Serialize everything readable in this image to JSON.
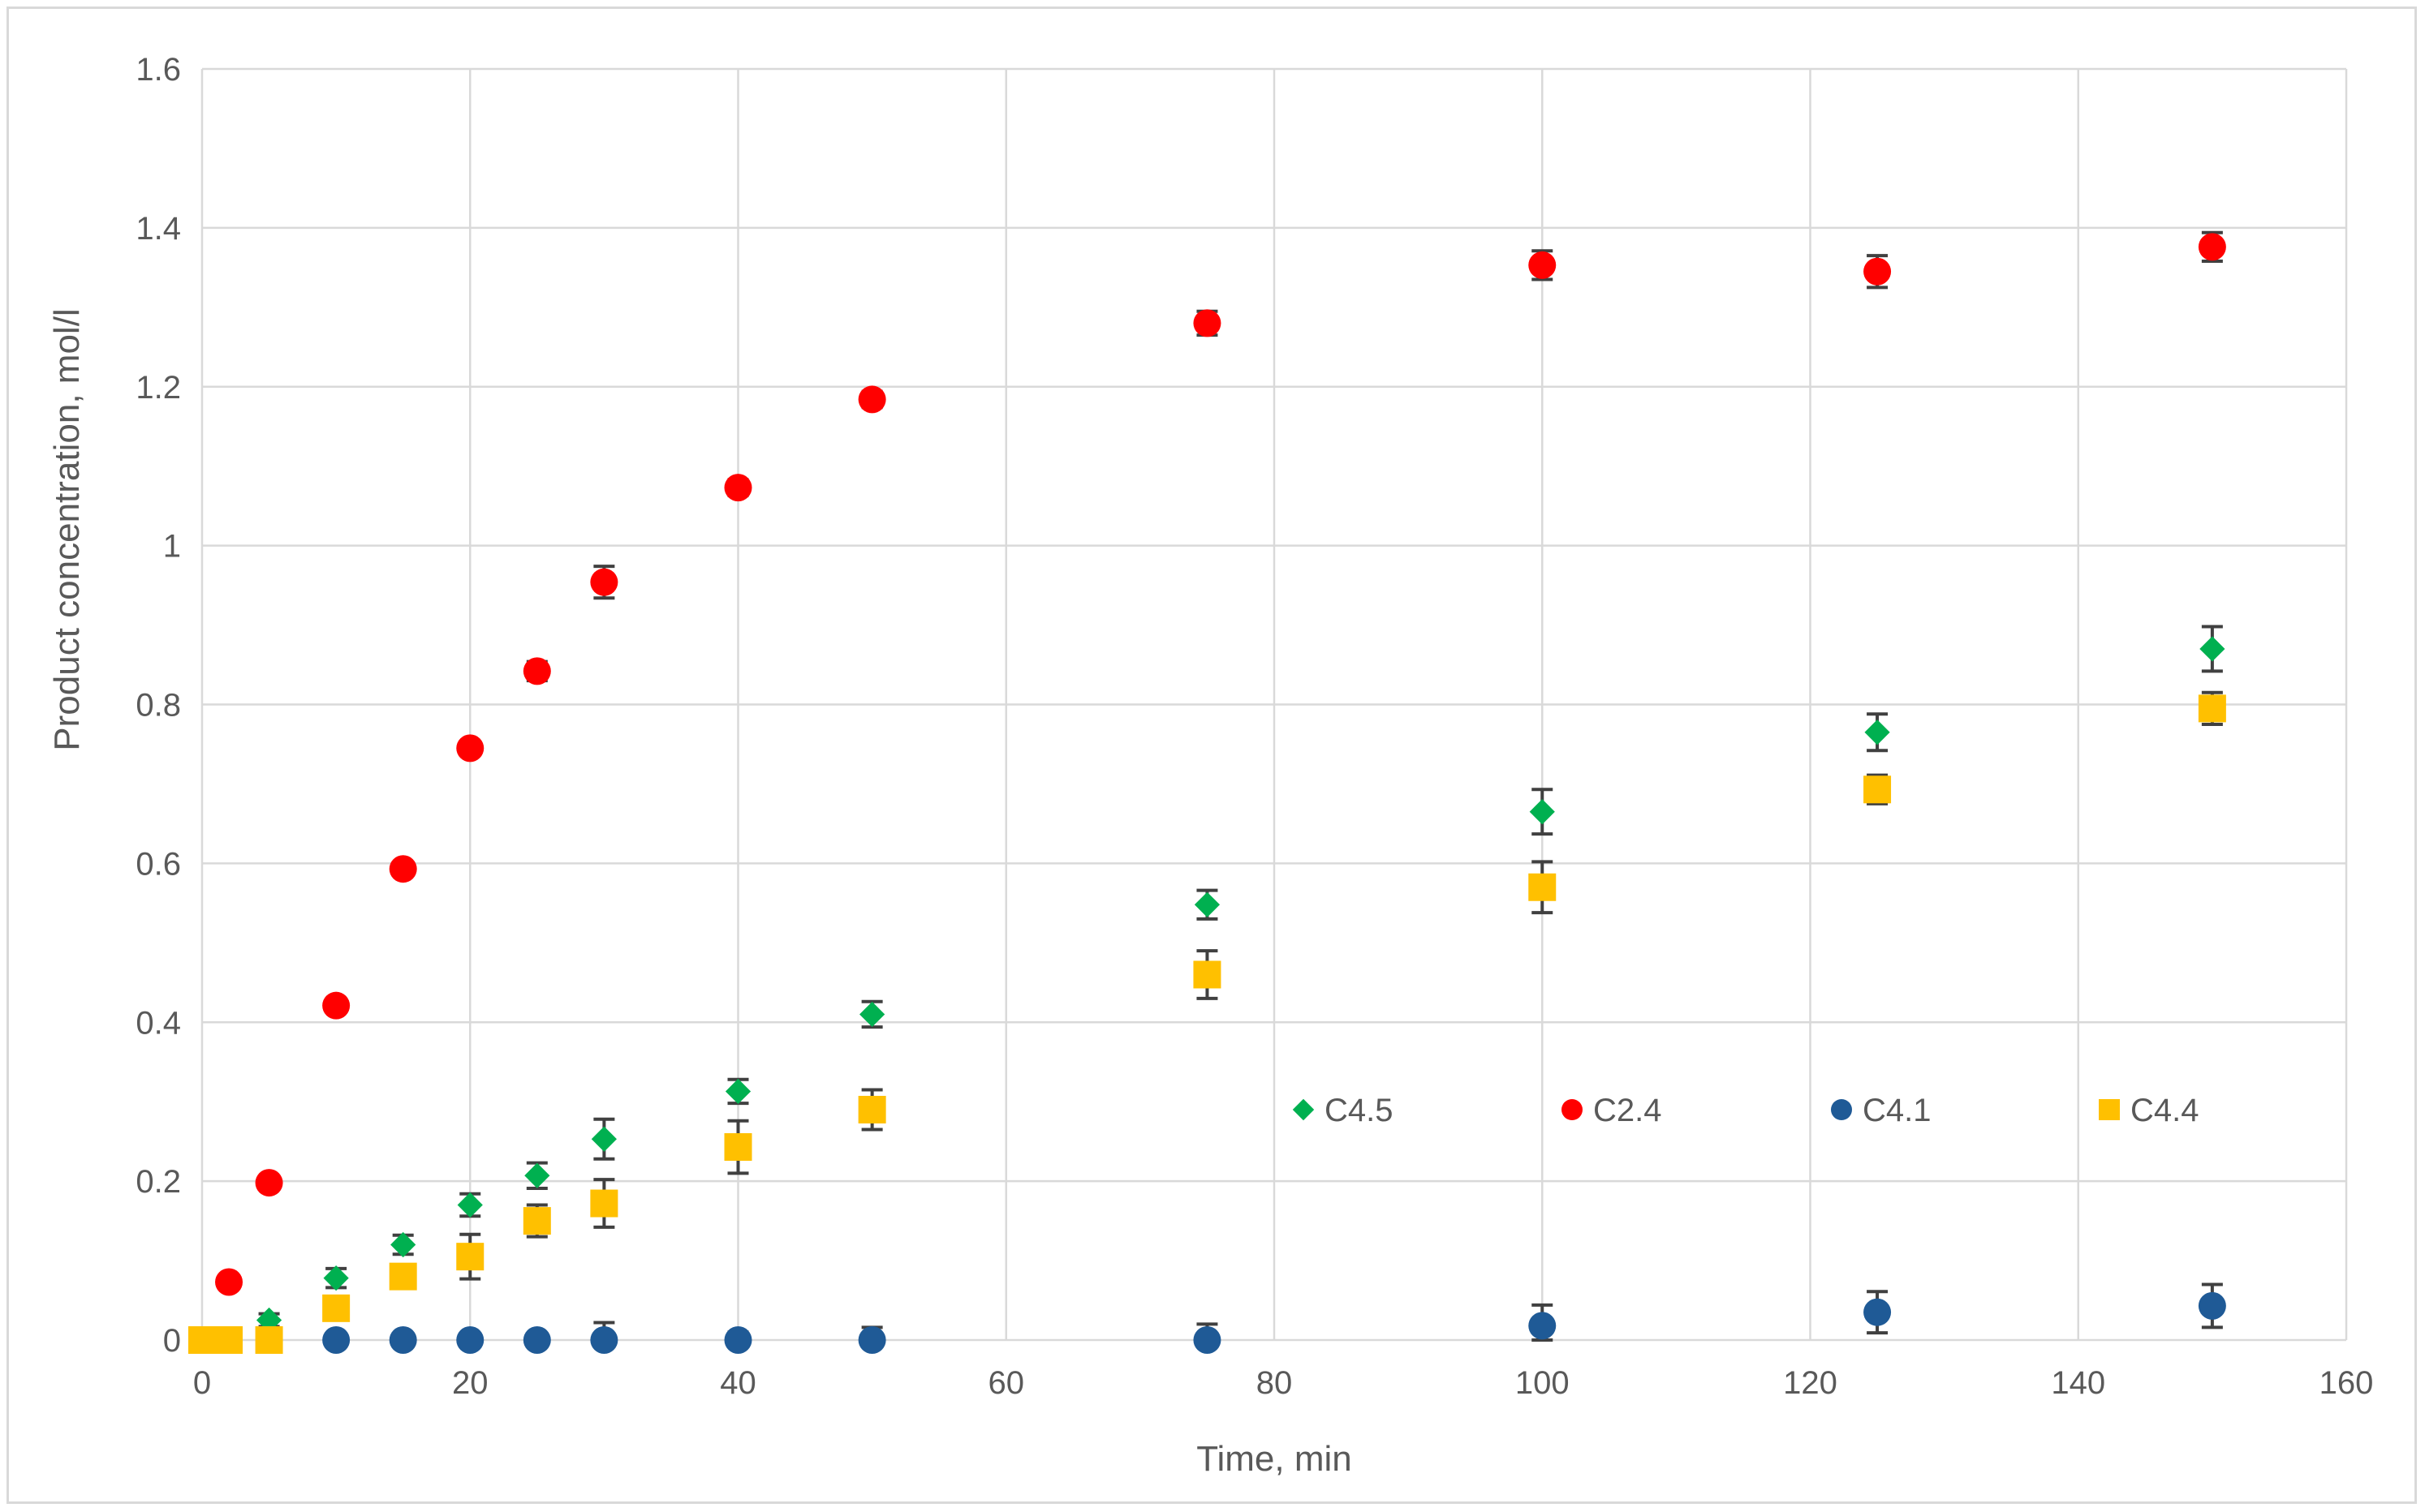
{
  "chart_data": {
    "type": "scatter",
    "title": "",
    "xlabel": "Time, min",
    "ylabel": "Product concentration, mol/l",
    "xlim": [
      0,
      160
    ],
    "ylim": [
      0,
      1.6
    ],
    "x_ticks": [
      0,
      20,
      40,
      60,
      80,
      100,
      120,
      140,
      160
    ],
    "y_ticks": [
      0,
      0.2,
      0.4,
      0.6,
      0.8,
      1,
      1.2,
      1.4,
      1.6
    ],
    "x_tick_labels": [
      "0",
      "20",
      "40",
      "60",
      "80",
      "100",
      "120",
      "140",
      "160"
    ],
    "y_tick_labels": [
      "0",
      "0.2",
      "0.4",
      "0.6",
      "0.8",
      "1",
      "1.2",
      "1.4",
      "1.6"
    ],
    "grid": true,
    "legend_position": "center-right",
    "series": [
      {
        "name": "C4.5",
        "marker": "diamond",
        "color": "#00b050",
        "points": [
          {
            "x": 0,
            "y": 0,
            "err": 0.005
          },
          {
            "x": 2,
            "y": 0,
            "err": 0.005
          },
          {
            "x": 5,
            "y": 0.025,
            "err": 0.008
          },
          {
            "x": 10,
            "y": 0.078,
            "err": 0.012
          },
          {
            "x": 15,
            "y": 0.12,
            "err": 0.012
          },
          {
            "x": 20,
            "y": 0.17,
            "err": 0.014
          },
          {
            "x": 25,
            "y": 0.207,
            "err": 0.016
          },
          {
            "x": 30,
            "y": 0.253,
            "err": 0.025
          },
          {
            "x": 40,
            "y": 0.313,
            "err": 0.015
          },
          {
            "x": 50,
            "y": 0.41,
            "err": 0.016
          },
          {
            "x": 75,
            "y": 0.548,
            "err": 0.018
          },
          {
            "x": 100,
            "y": 0.665,
            "err": 0.028
          },
          {
            "x": 125,
            "y": 0.765,
            "err": 0.023
          },
          {
            "x": 150,
            "y": 0.87,
            "err": 0.028
          }
        ]
      },
      {
        "name": "C2.4",
        "marker": "circle",
        "color": "#ff0000",
        "points": [
          {
            "x": 0,
            "y": 0,
            "err": 0.003
          },
          {
            "x": 2,
            "y": 0.073,
            "err": 0.005
          },
          {
            "x": 5,
            "y": 0.198,
            "err": 0.005
          },
          {
            "x": 10,
            "y": 0.421,
            "err": 0.006
          },
          {
            "x": 15,
            "y": 0.593,
            "err": 0.007
          },
          {
            "x": 20,
            "y": 0.745,
            "err": 0.008
          },
          {
            "x": 25,
            "y": 0.842,
            "err": 0.012
          },
          {
            "x": 30,
            "y": 0.954,
            "err": 0.02
          },
          {
            "x": 40,
            "y": 1.073,
            "err": 0.01
          },
          {
            "x": 50,
            "y": 1.184,
            "err": 0.01
          },
          {
            "x": 75,
            "y": 1.28,
            "err": 0.015
          },
          {
            "x": 100,
            "y": 1.353,
            "err": 0.018
          },
          {
            "x": 125,
            "y": 1.345,
            "err": 0.02
          },
          {
            "x": 150,
            "y": 1.376,
            "err": 0.018
          }
        ]
      },
      {
        "name": "C4.1",
        "marker": "circle",
        "color": "#1f5a96",
        "points": [
          {
            "x": 10,
            "y": 0,
            "err": 0.005
          },
          {
            "x": 15,
            "y": 0,
            "err": 0.005
          },
          {
            "x": 20,
            "y": 0,
            "err": 0.005
          },
          {
            "x": 25,
            "y": 0,
            "err": 0.008
          },
          {
            "x": 30,
            "y": 0,
            "err": 0.022
          },
          {
            "x": 40,
            "y": 0,
            "err": 0.01
          },
          {
            "x": 50,
            "y": 0,
            "err": 0.016
          },
          {
            "x": 75,
            "y": 0,
            "err": 0.02
          },
          {
            "x": 100,
            "y": 0.018,
            "err": 0.026
          },
          {
            "x": 125,
            "y": 0.035,
            "err": 0.026
          },
          {
            "x": 150,
            "y": 0.043,
            "err": 0.027
          }
        ]
      },
      {
        "name": "C4.4",
        "marker": "square",
        "color": "#ffc000",
        "points": [
          {
            "x": 0,
            "y": 0,
            "err": 0.005
          },
          {
            "x": 2,
            "y": 0,
            "err": 0.005
          },
          {
            "x": 5,
            "y": 0,
            "err": 0.005
          },
          {
            "x": 10,
            "y": 0.04,
            "err": 0.012
          },
          {
            "x": 15,
            "y": 0.08,
            "err": 0.008
          },
          {
            "x": 20,
            "y": 0.105,
            "err": 0.028
          },
          {
            "x": 25,
            "y": 0.15,
            "err": 0.02
          },
          {
            "x": 30,
            "y": 0.172,
            "err": 0.03
          },
          {
            "x": 40,
            "y": 0.243,
            "err": 0.033
          },
          {
            "x": 50,
            "y": 0.29,
            "err": 0.025
          },
          {
            "x": 75,
            "y": 0.46,
            "err": 0.03
          },
          {
            "x": 100,
            "y": 0.57,
            "err": 0.032
          },
          {
            "x": 125,
            "y": 0.693,
            "err": 0.018
          },
          {
            "x": 150,
            "y": 0.795,
            "err": 0.02
          }
        ]
      }
    ]
  }
}
